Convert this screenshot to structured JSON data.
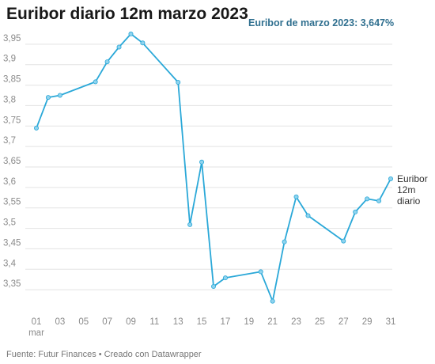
{
  "title": "Euribor diario 12m marzo 2023",
  "subtitle": "Euribor de marzo 2023: 3,647%",
  "footer": "Fuente: Futur Finances • Creado con Datawrapper",
  "colors": {
    "line": "#2aa8d8",
    "grid": "#e3e3e3",
    "accent": "#2f6f8f"
  },
  "chart_data": {
    "type": "line",
    "title": "Euribor diario 12m marzo 2023",
    "xlabel": "",
    "ylabel": "",
    "xlim": [
      1,
      31
    ],
    "ylim": [
      3.3,
      4.0
    ],
    "y_ticks": [
      3.35,
      3.4,
      3.45,
      3.5,
      3.55,
      3.6,
      3.65,
      3.7,
      3.75,
      3.8,
      3.85,
      3.9,
      3.95
    ],
    "y_tick_labels": [
      "3,35",
      "3,4",
      "3,45",
      "3,5",
      "3,55",
      "3,6",
      "3,65",
      "3,7",
      "3,75",
      "3,8",
      "3,85",
      "3,9",
      "3,95"
    ],
    "x_ticks": [
      1,
      3,
      5,
      7,
      9,
      11,
      13,
      15,
      17,
      19,
      21,
      23,
      25,
      27,
      29,
      31
    ],
    "x_tick_labels": [
      "01",
      "03",
      "05",
      "07",
      "09",
      "11",
      "13",
      "15",
      "17",
      "19",
      "21",
      "23",
      "25",
      "27",
      "29",
      "31"
    ],
    "x_sub_label": "mar",
    "grid": true,
    "series": [
      {
        "name": "Euribor 12m diario",
        "name_lines": [
          "Euribor",
          "12m",
          "diario"
        ],
        "points": [
          [
            1,
            3.745
          ],
          [
            2,
            3.82
          ],
          [
            3,
            3.825
          ],
          [
            6,
            3.858
          ],
          [
            7,
            3.907
          ],
          [
            8,
            3.943
          ],
          [
            9,
            3.975
          ],
          [
            10,
            3.953
          ],
          [
            13,
            3.857
          ],
          [
            14,
            3.509
          ],
          [
            15,
            3.662
          ],
          [
            16,
            3.358
          ],
          [
            17,
            3.379
          ],
          [
            20,
            3.394
          ],
          [
            21,
            3.322
          ],
          [
            22,
            3.467
          ],
          [
            23,
            3.577
          ],
          [
            24,
            3.531
          ],
          [
            27,
            3.469
          ],
          [
            28,
            3.54
          ],
          [
            29,
            3.572
          ],
          [
            30,
            3.567
          ],
          [
            31,
            3.621
          ]
        ]
      }
    ]
  }
}
